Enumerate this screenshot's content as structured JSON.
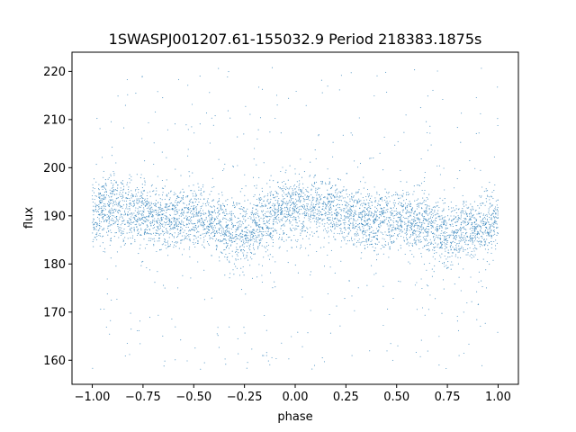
{
  "chart_data": {
    "type": "scatter",
    "title": "1SWASPJ001207.61-155032.9 Period 218383.1875s",
    "xlabel": "phase",
    "ylabel": "flux",
    "xlim": [
      -1.1,
      1.1
    ],
    "ylim": [
      155,
      224
    ],
    "x_ticks": [
      -1.0,
      -0.75,
      -0.5,
      -0.25,
      0.0,
      0.25,
      0.5,
      0.75,
      1.0
    ],
    "x_tick_labels": [
      "−1.00",
      "−0.75",
      "−0.50",
      "−0.25",
      "0.00",
      "0.25",
      "0.50",
      "0.75",
      "1.00"
    ],
    "y_ticks": [
      160,
      170,
      180,
      190,
      200,
      210,
      220
    ],
    "y_tick_labels": [
      "160",
      "170",
      "180",
      "190",
      "200",
      "210",
      "220"
    ],
    "grid": false,
    "marker_color": "#1f77b4",
    "series": [
      {
        "x_range": [
          -1.0,
          1.0
        ],
        "y_range": [
          158,
          221
        ],
        "trend_phase": [
          -1.0,
          -0.9,
          -0.75,
          -0.6,
          -0.5,
          -0.4,
          -0.25,
          -0.1,
          0.0,
          0.1,
          0.25,
          0.4,
          0.5,
          0.6,
          0.75,
          0.9,
          1.0
        ],
        "trend_flux": [
          190.5,
          191.5,
          190.5,
          189,
          190,
          188.5,
          186,
          190.5,
          191.5,
          192,
          190.5,
          188.5,
          189.5,
          189,
          186.5,
          187.5,
          189.5
        ]
      }
    ]
  }
}
